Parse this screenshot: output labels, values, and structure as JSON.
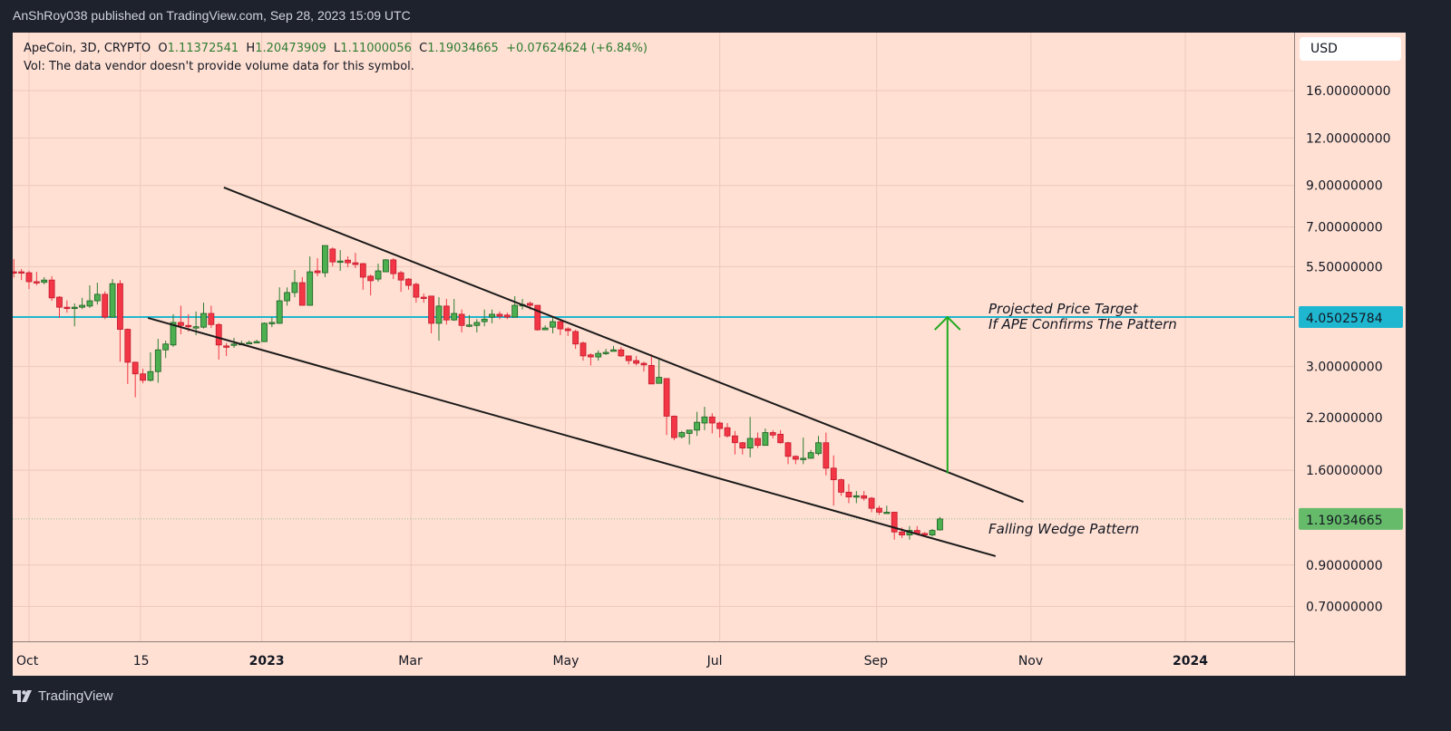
{
  "header": {
    "published": "AnShRoy038 published on TradingView.com, Sep 28, 2023 15:09 UTC"
  },
  "legend": {
    "symbol": "ApeCoin, 3D, CRYPTO",
    "o_label": "O",
    "o": "1.11372541",
    "h_label": "H",
    "h": "1.20473909",
    "l_label": "L",
    "l": "1.11000056",
    "c_label": "C",
    "c": "1.19034665",
    "change": "+0.07624624 (+6.84%)",
    "vol": "Vol: The data vendor doesn't provide volume data for this symbol."
  },
  "currency_button": "USD",
  "footer": {
    "brand": "TradingView"
  },
  "colors": {
    "up": "#4caf50",
    "up_border": "#1b5e20",
    "down": "#f23645",
    "target_line": "#1fb6d0",
    "last_price": "#66bb6a",
    "arrow": "#1faa1f",
    "trendline": "#1a1a1a",
    "background": "#ffe0d3"
  },
  "chart_data": {
    "type": "candlestick",
    "interval": "3D",
    "y_scale": "log",
    "grid": true,
    "y_ticks": [
      {
        "value": 16,
        "label": "16.00000000"
      },
      {
        "value": 12,
        "label": "12.00000000"
      },
      {
        "value": 9,
        "label": "9.00000000"
      },
      {
        "value": 7,
        "label": "7.00000000"
      },
      {
        "value": 5.5,
        "label": "5.50000000"
      },
      {
        "value": 3,
        "label": "3.00000000"
      },
      {
        "value": 2.2,
        "label": "2.20000000"
      },
      {
        "value": 1.6,
        "label": "1.60000000"
      },
      {
        "value": 0.9,
        "label": "0.90000000"
      },
      {
        "value": 0.7,
        "label": "0.70000000"
      }
    ],
    "x_ticks": [
      {
        "date": "2022-10-01",
        "label": "Oct",
        "bold": false
      },
      {
        "date": "2022-11-14",
        "label": "15",
        "bold": false
      },
      {
        "date": "2023-01-01",
        "label": "2023",
        "bold": true
      },
      {
        "date": "2023-03-01",
        "label": "Mar",
        "bold": false
      },
      {
        "date": "2023-05-01",
        "label": "May",
        "bold": false
      },
      {
        "date": "2023-07-01",
        "label": "Jul",
        "bold": false
      },
      {
        "date": "2023-09-01",
        "label": "Sep",
        "bold": false
      },
      {
        "date": "2023-11-01",
        "label": "Nov",
        "bold": false
      },
      {
        "date": "2024-01-01",
        "label": "2024",
        "bold": true
      }
    ],
    "price_labels": {
      "target": "4.05025784",
      "last": "1.19034665"
    },
    "horizontal_line": 4.05025784,
    "last_price": 1.19034665,
    "trendlines": [
      {
        "from": [
          "2022-12-17",
          8.89
        ],
        "to": [
          "2023-10-29",
          1.32
        ]
      },
      {
        "from": [
          "2022-11-17",
          4.03
        ],
        "to": [
          "2023-10-18",
          0.95
        ]
      }
    ],
    "arrow": {
      "date": "2023-09-29",
      "from": 1.57,
      "to": 4.05
    },
    "annotations": {
      "target_line1": "Projected Price Target",
      "target_line2": "If APE Confirms The Pattern",
      "pattern": "Falling Wedge Pattern"
    },
    "ohlc": [
      [
        "2022-09-25",
        5.33,
        5.76,
        5.15,
        5.3
      ],
      [
        "2022-09-28",
        5.33,
        5.42,
        5.07,
        5.3
      ],
      [
        "2022-10-01",
        5.3,
        5.36,
        4.8,
        5.02
      ],
      [
        "2022-10-04",
        5.02,
        5.33,
        4.91,
        5.0
      ],
      [
        "2022-10-07",
        5.0,
        5.16,
        4.94,
        5.07
      ],
      [
        "2022-10-10",
        5.07,
        5.19,
        4.47,
        4.55
      ],
      [
        "2022-10-13",
        4.57,
        4.6,
        4.03,
        4.3
      ],
      [
        "2022-10-16",
        4.3,
        4.48,
        4.16,
        4.28
      ],
      [
        "2022-10-19",
        4.28,
        4.4,
        3.83,
        4.3
      ],
      [
        "2022-10-22",
        4.3,
        4.55,
        4.25,
        4.35
      ],
      [
        "2022-10-25",
        4.33,
        4.91,
        4.28,
        4.47
      ],
      [
        "2022-10-28",
        4.47,
        4.99,
        4.37,
        4.65
      ],
      [
        "2022-10-31",
        4.65,
        4.73,
        4.0,
        4.05
      ],
      [
        "2022-11-03",
        4.05,
        5.1,
        4.05,
        4.96
      ],
      [
        "2022-11-06",
        4.96,
        5.07,
        3.09,
        3.76
      ],
      [
        "2022-11-09",
        3.76,
        3.78,
        2.7,
        3.08
      ],
      [
        "2022-11-12",
        3.08,
        3.09,
        2.49,
        2.87
      ],
      [
        "2022-11-15",
        2.87,
        2.96,
        2.71,
        2.76
      ],
      [
        "2022-11-18",
        2.76,
        3.27,
        2.74,
        2.91
      ],
      [
        "2022-11-21",
        2.91,
        3.55,
        2.72,
        3.32
      ],
      [
        "2022-11-24",
        3.32,
        3.51,
        3.16,
        3.44
      ],
      [
        "2022-11-27",
        3.42,
        4.12,
        3.38,
        3.92
      ],
      [
        "2022-11-30",
        3.92,
        4.34,
        3.65,
        3.85
      ],
      [
        "2022-12-03",
        3.85,
        4.12,
        3.71,
        3.83
      ],
      [
        "2022-12-06",
        3.81,
        4.19,
        3.63,
        3.82
      ],
      [
        "2022-12-09",
        3.81,
        4.42,
        3.78,
        4.14
      ],
      [
        "2022-12-12",
        4.14,
        4.34,
        3.79,
        3.87
      ],
      [
        "2022-12-15",
        3.87,
        3.91,
        3.13,
        3.42
      ],
      [
        "2022-12-18",
        3.4,
        3.46,
        3.2,
        3.38
      ],
      [
        "2022-12-21",
        3.42,
        3.57,
        3.36,
        3.44
      ],
      [
        "2022-12-24",
        3.44,
        3.51,
        3.42,
        3.45
      ],
      [
        "2022-12-27",
        3.45,
        3.51,
        3.44,
        3.47
      ],
      [
        "2022-12-30",
        3.47,
        3.53,
        3.47,
        3.49
      ],
      [
        "2023-01-02",
        3.49,
        3.92,
        3.49,
        3.9
      ],
      [
        "2023-01-05",
        3.9,
        4.05,
        3.81,
        3.92
      ],
      [
        "2023-01-08",
        3.9,
        4.85,
        3.89,
        4.47
      ],
      [
        "2023-01-11",
        4.47,
        4.85,
        4.34,
        4.7
      ],
      [
        "2023-01-14",
        4.7,
        5.39,
        4.57,
        4.99
      ],
      [
        "2023-01-17",
        4.99,
        5.16,
        4.35,
        4.35
      ],
      [
        "2023-01-20",
        4.35,
        5.85,
        4.35,
        5.33
      ],
      [
        "2023-01-23",
        5.36,
        5.79,
        5.19,
        5.3
      ],
      [
        "2023-01-26",
        5.3,
        6.25,
        5.16,
        6.25
      ],
      [
        "2023-01-29",
        6.12,
        6.18,
        5.51,
        5.66
      ],
      [
        "2023-02-01",
        5.66,
        6.08,
        5.36,
        5.69
      ],
      [
        "2023-02-04",
        5.72,
        5.85,
        5.48,
        5.63
      ],
      [
        "2023-02-07",
        5.63,
        5.98,
        5.45,
        5.57
      ],
      [
        "2023-02-10",
        5.6,
        5.63,
        4.78,
        5.16
      ],
      [
        "2023-02-13",
        5.19,
        5.24,
        4.62,
        5.05
      ],
      [
        "2023-02-16",
        5.1,
        5.6,
        5.02,
        5.36
      ],
      [
        "2023-02-19",
        5.33,
        5.76,
        5.33,
        5.73
      ],
      [
        "2023-02-22",
        5.73,
        5.79,
        5.1,
        5.27
      ],
      [
        "2023-02-25",
        5.3,
        5.36,
        4.72,
        5.07
      ],
      [
        "2023-02-28",
        5.1,
        5.13,
        4.78,
        4.91
      ],
      [
        "2023-03-03",
        4.94,
        4.99,
        4.42,
        4.57
      ],
      [
        "2023-03-06",
        4.57,
        4.67,
        4.42,
        4.55
      ],
      [
        "2023-03-09",
        4.6,
        4.6,
        3.67,
        3.9
      ],
      [
        "2023-03-12",
        3.9,
        4.57,
        3.51,
        4.33
      ],
      [
        "2023-03-15",
        4.33,
        4.52,
        3.87,
        3.98
      ],
      [
        "2023-03-18",
        3.98,
        4.52,
        3.96,
        4.14
      ],
      [
        "2023-03-21",
        4.12,
        4.24,
        3.69,
        3.85
      ],
      [
        "2023-03-24",
        3.85,
        4.1,
        3.81,
        3.86
      ],
      [
        "2023-03-27",
        3.85,
        4.0,
        3.69,
        3.92
      ],
      [
        "2023-03-30",
        3.94,
        4.24,
        3.83,
        4.0
      ],
      [
        "2023-04-02",
        4.05,
        4.24,
        3.9,
        4.12
      ],
      [
        "2023-04-05",
        4.12,
        4.19,
        4.0,
        4.07
      ],
      [
        "2023-04-08",
        4.1,
        4.16,
        4.0,
        4.05
      ],
      [
        "2023-04-11",
        4.05,
        4.6,
        4.05,
        4.35
      ],
      [
        "2023-04-14",
        4.35,
        4.52,
        4.24,
        4.37
      ],
      [
        "2023-04-17",
        4.4,
        4.45,
        4.24,
        4.35
      ],
      [
        "2023-04-20",
        4.35,
        4.35,
        3.73,
        3.75
      ],
      [
        "2023-04-23",
        3.75,
        3.85,
        3.75,
        3.79
      ],
      [
        "2023-04-26",
        3.81,
        4.05,
        3.67,
        3.94
      ],
      [
        "2023-04-29",
        3.94,
        3.98,
        3.63,
        3.77
      ],
      [
        "2023-05-02",
        3.77,
        3.81,
        3.61,
        3.73
      ],
      [
        "2023-05-05",
        3.71,
        3.75,
        3.34,
        3.44
      ],
      [
        "2023-05-08",
        3.46,
        3.49,
        3.11,
        3.2
      ],
      [
        "2023-05-11",
        3.22,
        3.25,
        3.02,
        3.18
      ],
      [
        "2023-05-14",
        3.18,
        3.31,
        3.11,
        3.25
      ],
      [
        "2023-05-17",
        3.25,
        3.34,
        3.22,
        3.27
      ],
      [
        "2023-05-20",
        3.29,
        3.4,
        3.29,
        3.32
      ],
      [
        "2023-05-23",
        3.32,
        3.38,
        3.18,
        3.2
      ],
      [
        "2023-05-26",
        3.2,
        3.2,
        3.04,
        3.11
      ],
      [
        "2023-05-29",
        3.11,
        3.2,
        3.02,
        3.06
      ],
      [
        "2023-06-01",
        3.06,
        3.09,
        2.91,
        3.03
      ],
      [
        "2023-06-04",
        3.02,
        3.23,
        2.7,
        2.7
      ],
      [
        "2023-06-07",
        2.71,
        3.13,
        2.71,
        2.81
      ],
      [
        "2023-06-10",
        2.79,
        2.79,
        1.98,
        2.22
      ],
      [
        "2023-06-13",
        2.22,
        2.23,
        1.92,
        1.95
      ],
      [
        "2023-06-16",
        1.96,
        2.03,
        1.94,
        2.01
      ],
      [
        "2023-06-19",
        2.0,
        2.03,
        1.87,
        2.04
      ],
      [
        "2023-06-22",
        2.04,
        2.28,
        1.97,
        2.14
      ],
      [
        "2023-06-25",
        2.13,
        2.35,
        2.04,
        2.21
      ],
      [
        "2023-06-28",
        2.21,
        2.26,
        2.0,
        2.13
      ],
      [
        "2023-07-01",
        2.13,
        2.15,
        1.95,
        2.06
      ],
      [
        "2023-07-04",
        2.07,
        2.13,
        1.95,
        1.97
      ],
      [
        "2023-07-07",
        1.97,
        2.03,
        1.76,
        1.89
      ],
      [
        "2023-07-10",
        1.89,
        1.9,
        1.76,
        1.83
      ],
      [
        "2023-07-13",
        1.83,
        2.21,
        1.73,
        1.94
      ],
      [
        "2023-07-16",
        1.94,
        2.01,
        1.83,
        1.86
      ],
      [
        "2023-07-19",
        1.86,
        2.06,
        1.86,
        2.01
      ],
      [
        "2023-07-22",
        2.01,
        2.04,
        1.94,
        1.98
      ],
      [
        "2023-07-25",
        1.99,
        2.04,
        1.88,
        1.89
      ],
      [
        "2023-07-28",
        1.89,
        1.9,
        1.66,
        1.74
      ],
      [
        "2023-07-31",
        1.74,
        1.75,
        1.66,
        1.71
      ],
      [
        "2023-08-03",
        1.71,
        1.95,
        1.66,
        1.72
      ],
      [
        "2023-08-06",
        1.72,
        1.81,
        1.72,
        1.78
      ],
      [
        "2023-08-09",
        1.77,
        1.97,
        1.75,
        1.89
      ],
      [
        "2023-08-12",
        1.89,
        2.01,
        1.55,
        1.62
      ],
      [
        "2023-08-15",
        1.62,
        1.75,
        1.29,
        1.51
      ],
      [
        "2023-08-18",
        1.51,
        1.52,
        1.37,
        1.4
      ],
      [
        "2023-08-21",
        1.4,
        1.47,
        1.31,
        1.36
      ],
      [
        "2023-08-24",
        1.36,
        1.41,
        1.31,
        1.37
      ],
      [
        "2023-08-27",
        1.37,
        1.41,
        1.33,
        1.35
      ],
      [
        "2023-08-30",
        1.35,
        1.36,
        1.24,
        1.27
      ],
      [
        "2023-09-02",
        1.27,
        1.29,
        1.22,
        1.24
      ],
      [
        "2023-09-05",
        1.24,
        1.29,
        1.23,
        1.24
      ],
      [
        "2023-09-08",
        1.24,
        1.24,
        1.05,
        1.1
      ],
      [
        "2023-09-11",
        1.1,
        1.13,
        1.06,
        1.08
      ],
      [
        "2023-09-14",
        1.08,
        1.14,
        1.05,
        1.11
      ],
      [
        "2023-09-17",
        1.11,
        1.14,
        1.08,
        1.09
      ],
      [
        "2023-09-20",
        1.09,
        1.1,
        1.07,
        1.08
      ],
      [
        "2023-09-23",
        1.08,
        1.12,
        1.07,
        1.11
      ],
      [
        "2023-09-26",
        1.11372541,
        1.20473909,
        1.11000056,
        1.19034665
      ]
    ]
  }
}
